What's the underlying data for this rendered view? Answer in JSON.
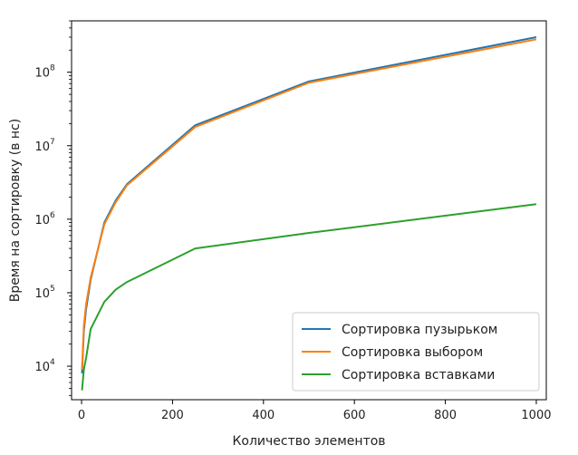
{
  "chart_data": {
    "type": "line",
    "xlabel": "Количество элементов",
    "ylabel": "Время на сортировку (в нс)",
    "yscale": "log",
    "xlim": [
      -22,
      1022
    ],
    "ylim": [
      3500,
      500000000
    ],
    "xticks": [
      0,
      200,
      400,
      600,
      800,
      1000
    ],
    "yticks": [
      {
        "base": "10",
        "exp": "4",
        "value": 10000
      },
      {
        "base": "10",
        "exp": "5",
        "value": 100000
      },
      {
        "base": "10",
        "exp": "6",
        "value": 1000000
      },
      {
        "base": "10",
        "exp": "7",
        "value": 10000000
      },
      {
        "base": "10",
        "exp": "8",
        "value": 100000000
      }
    ],
    "legend_position": "lower-right",
    "grid": false,
    "series": [
      {
        "name": "Сортировка пузырьком",
        "color": "#1f77b4",
        "x": [
          1,
          5,
          10,
          20,
          50,
          75,
          100,
          250,
          500,
          1000
        ],
        "y": [
          8000,
          30000,
          60000,
          150000,
          900000,
          1800000,
          3000000,
          19000000,
          75000000,
          300000000
        ]
      },
      {
        "name": "Сортировка выбором",
        "color": "#ff7f0e",
        "x": [
          1,
          5,
          10,
          20,
          50,
          75,
          100,
          250,
          500,
          1000
        ],
        "y": [
          9000,
          35000,
          70000,
          160000,
          850000,
          1700000,
          2900000,
          18000000,
          72000000,
          280000000
        ]
      },
      {
        "name": "Сортировка вставками",
        "color": "#2ca02c",
        "x": [
          1,
          5,
          10,
          20,
          50,
          75,
          100,
          250,
          500,
          1000
        ],
        "y": [
          4700,
          9000,
          13000,
          32000,
          75000,
          110000,
          140000,
          400000,
          650000,
          1600000
        ]
      }
    ]
  }
}
